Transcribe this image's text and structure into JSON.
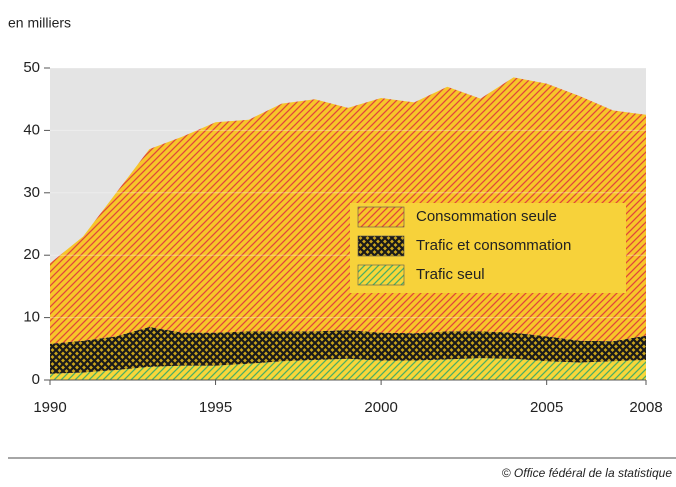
{
  "chart_data": {
    "type": "stacked_area",
    "y_label": "en milliers",
    "source": "© Office fédéral de la statistique",
    "x": [
      1990,
      1991,
      1992,
      1993,
      1994,
      1995,
      1996,
      1997,
      1998,
      1999,
      2000,
      2001,
      2002,
      2003,
      2004,
      2005,
      2006,
      2007,
      2008
    ],
    "series": [
      {
        "name": "Consommation seule",
        "color": "#f7c52a",
        "hatch": "#e0463a",
        "pattern": "diagonal",
        "values": [
          12.9,
          16.7,
          23.0,
          28.5,
          31.4,
          33.7,
          33.9,
          36.5,
          37.2,
          35.6,
          37.6,
          37.0,
          39.2,
          37.3,
          40.9,
          40.5,
          39.2,
          37.0,
          35.4
        ]
      },
      {
        "name": "Trafic et consommation",
        "color": "#c9a41c",
        "hatch": "#1a1a1a",
        "pattern": "cross",
        "values": [
          4.8,
          5.1,
          5.4,
          6.4,
          5.3,
          5.3,
          5.2,
          4.8,
          4.6,
          4.6,
          4.5,
          4.4,
          4.5,
          4.3,
          4.2,
          4.0,
          3.5,
          3.2,
          3.9
        ]
      },
      {
        "name": "Trafic seul",
        "color": "#f7d63a",
        "hatch": "#4dae63",
        "pattern": "diagonal",
        "values": [
          1.0,
          1.2,
          1.6,
          2.1,
          2.3,
          2.3,
          2.6,
          3.0,
          3.2,
          3.4,
          3.1,
          3.1,
          3.3,
          3.5,
          3.4,
          3.0,
          2.8,
          3.0,
          3.2
        ]
      }
    ],
    "xlim": [
      1990,
      2008
    ],
    "xticks": [
      1990,
      1995,
      2000,
      2005,
      2008
    ],
    "ylim": [
      0,
      50
    ],
    "yticks": [
      0,
      10,
      20,
      30,
      40,
      50
    ],
    "grid": true,
    "legend_position": "right",
    "plot_background": "#e4e4e4"
  }
}
